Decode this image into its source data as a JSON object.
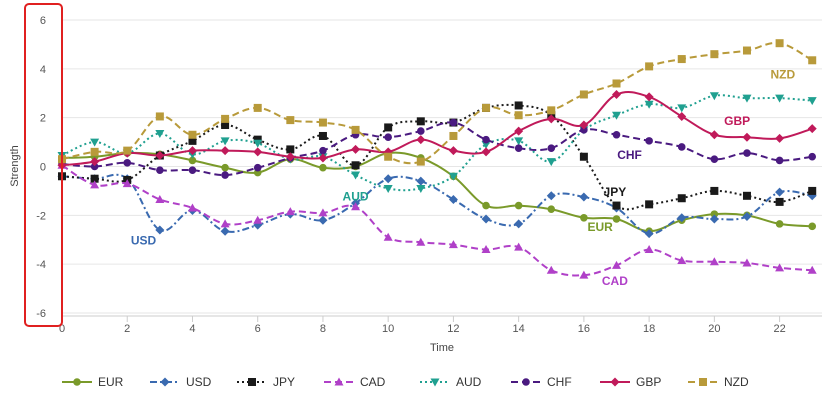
{
  "chart_data": {
    "type": "line",
    "xlabel": "Time",
    "ylabel": "Strength",
    "xlim": [
      0,
      23.3
    ],
    "ylim": [
      -6,
      6
    ],
    "x_ticks": [
      0,
      2,
      4,
      6,
      8,
      10,
      12,
      14,
      16,
      18,
      20,
      22
    ],
    "y_ticks": [
      6,
      4,
      2,
      0,
      -2,
      -4,
      -6
    ],
    "grid": "horizontal",
    "legend_position": "bottom",
    "highlight": "y-axis tick labels",
    "x": [
      0,
      1,
      2,
      3,
      4,
      5,
      6,
      7,
      8,
      9,
      10,
      11,
      12,
      13,
      14,
      15,
      16,
      17,
      18,
      19,
      20,
      21,
      22,
      23
    ],
    "series": [
      {
        "name": "EUR",
        "color": "#7a9a2a",
        "dash": "solid",
        "marker": "circle",
        "label_pos": [
          16.5,
          -2.65
        ],
        "values": [
          0.35,
          0.4,
          0.55,
          0.5,
          0.25,
          -0.05,
          -0.25,
          0.3,
          -0.05,
          0.0,
          0.55,
          0.35,
          -0.4,
          -1.6,
          -1.6,
          -1.75,
          -2.1,
          -2.15,
          -2.65,
          -2.2,
          -1.95,
          -2.0,
          -2.35,
          -2.45
        ]
      },
      {
        "name": "USD",
        "color": "#3a6ab0",
        "dash": "dashdot",
        "marker": "diamond",
        "label_pos": [
          2.5,
          -3.2
        ],
        "values": [
          -0.4,
          -0.5,
          -0.5,
          -2.6,
          -1.8,
          -2.65,
          -2.4,
          -1.95,
          -2.2,
          -1.5,
          -0.5,
          -0.6,
          -1.35,
          -2.15,
          -2.35,
          -1.2,
          -1.25,
          -1.7,
          -2.75,
          -2.1,
          -2.15,
          -2.05,
          -1.05,
          -1.2
        ]
      },
      {
        "name": "JPY",
        "color": "#1a1a1a",
        "dash": "dotted",
        "marker": "square",
        "label_pos": [
          16.95,
          -1.2
        ],
        "values": [
          -0.4,
          -0.5,
          -0.55,
          0.45,
          1.05,
          1.7,
          1.1,
          0.7,
          1.25,
          0.05,
          1.6,
          1.85,
          1.8,
          2.4,
          2.5,
          2.1,
          0.4,
          -1.6,
          -1.55,
          -1.3,
          -1.0,
          -1.2,
          -1.45,
          -1.0
        ]
      },
      {
        "name": "CAD",
        "color": "#b040c8",
        "dash": "dashed",
        "marker": "triangle",
        "label_pos": [
          16.95,
          -4.85
        ],
        "values": [
          0.05,
          -0.75,
          -0.7,
          -1.35,
          -1.7,
          -2.35,
          -2.2,
          -1.85,
          -1.9,
          -1.65,
          -2.9,
          -3.1,
          -3.2,
          -3.4,
          -3.3,
          -4.25,
          -4.45,
          -4.05,
          -3.4,
          -3.85,
          -3.9,
          -3.95,
          -4.15,
          -4.25
        ]
      },
      {
        "name": "AUD",
        "color": "#20a090",
        "dash": "dotted",
        "marker": "triangle-down",
        "label_pos": [
          9.0,
          -1.4
        ],
        "values": [
          0.45,
          1.0,
          0.55,
          1.35,
          0.5,
          1.05,
          0.95,
          0.3,
          0.4,
          -0.35,
          -0.9,
          -0.9,
          -0.4,
          0.9,
          1.05,
          0.2,
          1.5,
          2.1,
          2.55,
          2.4,
          2.9,
          2.8,
          2.8,
          2.7
        ]
      },
      {
        "name": "CHF",
        "color": "#4a1a80",
        "dash": "dashed",
        "marker": "circle",
        "label_pos": [
          17.4,
          0.3
        ],
        "values": [
          0.1,
          0.0,
          0.15,
          -0.15,
          -0.15,
          -0.35,
          -0.05,
          0.35,
          0.65,
          1.3,
          1.2,
          1.45,
          1.8,
          1.1,
          0.75,
          0.75,
          1.5,
          1.3,
          1.05,
          0.8,
          0.3,
          0.55,
          0.25,
          0.4
        ]
      },
      {
        "name": "GBP",
        "color": "#c01a5a",
        "dash": "solid",
        "marker": "diamond",
        "label_pos": [
          20.7,
          1.7
        ],
        "values": [
          0.05,
          0.2,
          0.55,
          0.45,
          0.65,
          0.65,
          0.6,
          0.4,
          0.35,
          0.7,
          0.6,
          1.1,
          0.65,
          0.6,
          1.45,
          1.95,
          1.7,
          2.95,
          2.85,
          2.05,
          1.3,
          1.2,
          1.15,
          1.55
        ]
      },
      {
        "name": "NZD",
        "color": "#b89a3a",
        "dash": "dashed",
        "marker": "square",
        "label_pos": [
          22.1,
          3.6
        ],
        "values": [
          0.3,
          0.6,
          0.65,
          2.05,
          1.3,
          1.95,
          2.4,
          1.9,
          1.8,
          1.5,
          0.4,
          0.2,
          1.25,
          2.4,
          2.1,
          2.3,
          2.95,
          3.4,
          4.1,
          4.4,
          4.6,
          4.75,
          5.05,
          4.35
        ]
      }
    ]
  }
}
